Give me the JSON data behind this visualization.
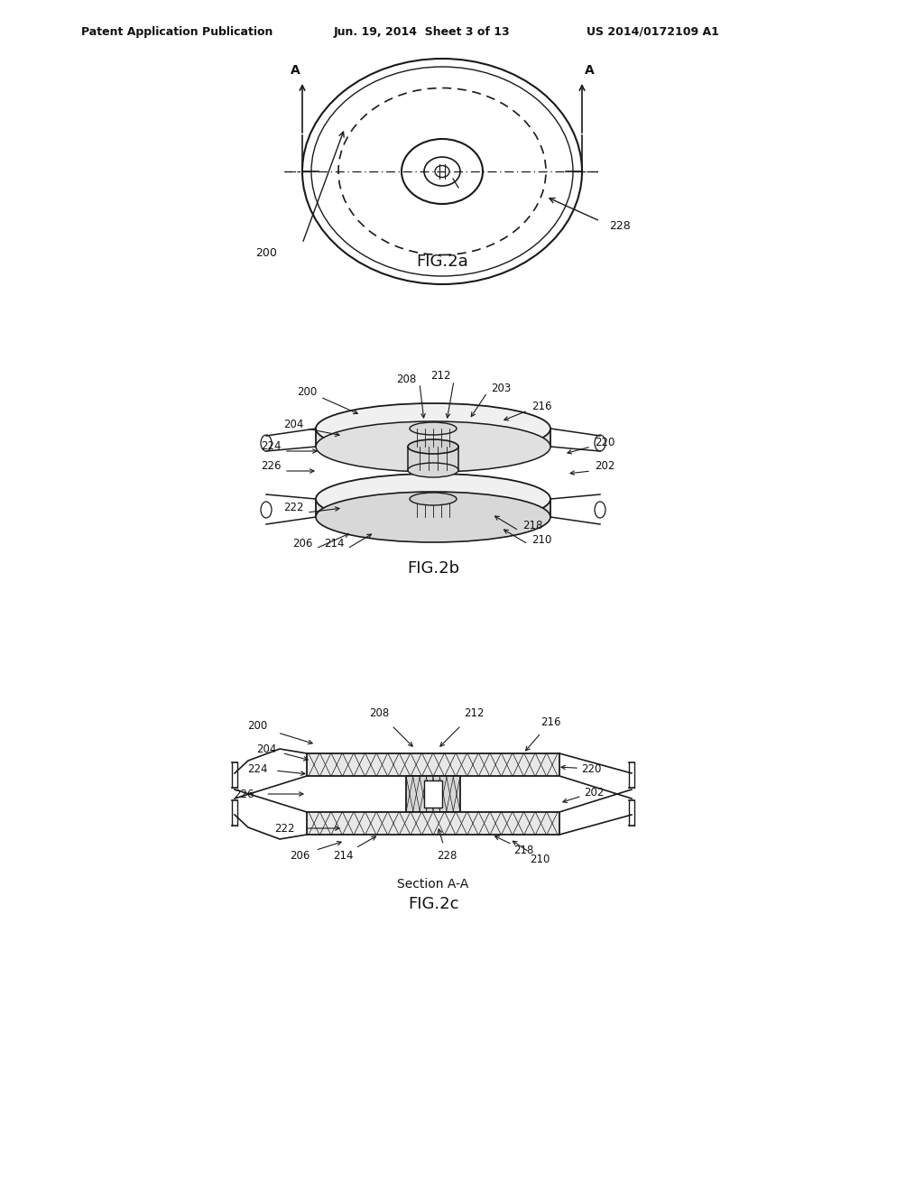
{
  "bg_color": "#ffffff",
  "header_left": "Patent Application Publication",
  "header_center": "Jun. 19, 2014  Sheet 3 of 13",
  "header_right": "US 2014/0172109 A1",
  "fig2a_label": "FIG.2a",
  "fig2b_label": "FIG.2b",
  "fig2c_label": "FIG.2c",
  "fig2c_sublabel": "Section A-A",
  "line_color": "#1a1a1a",
  "dashed_color": "#1a1a1a",
  "hatch_color": "#1a1a1a"
}
